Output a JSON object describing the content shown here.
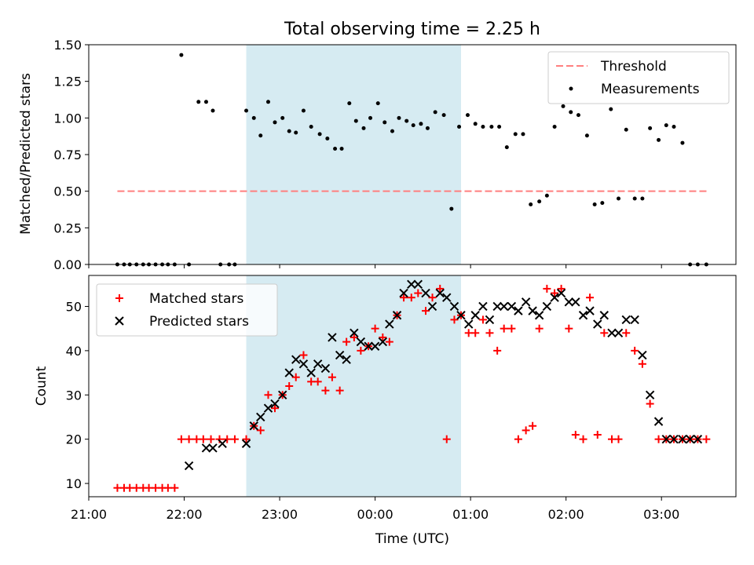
{
  "title": "Total observing time = 2.25 h",
  "x_axis": {
    "label": "Time (UTC)",
    "ticks": [
      {
        "t": 21.0,
        "label": "21:00"
      },
      {
        "t": 22.0,
        "label": "22:00"
      },
      {
        "t": 23.0,
        "label": "23:00"
      },
      {
        "t": 24.0,
        "label": "00:00"
      },
      {
        "t": 25.0,
        "label": "01:00"
      },
      {
        "t": 26.0,
        "label": "02:00"
      },
      {
        "t": 27.0,
        "label": "03:00"
      }
    ],
    "range": [
      21.0,
      27.78
    ]
  },
  "shaded_interval": {
    "start": 22.65,
    "end": 24.9,
    "color": "#add8e6"
  },
  "chart_data": [
    {
      "type": "scatter",
      "panel": "top",
      "ylabel": "Matched/Predicted stars",
      "ylim": [
        0,
        1.5
      ],
      "yticks": [
        {
          "v": 0.0,
          "label": "0.00"
        },
        {
          "v": 0.25,
          "label": "0.25"
        },
        {
          "v": 0.5,
          "label": "0.50"
        },
        {
          "v": 0.75,
          "label": "0.75"
        },
        {
          "v": 1.0,
          "label": "1.00"
        },
        {
          "v": 1.25,
          "label": "1.25"
        },
        {
          "v": 1.5,
          "label": "1.50"
        }
      ],
      "legend": {
        "placement": "top-right",
        "entries": [
          "Threshold",
          "Measurements"
        ]
      },
      "threshold": {
        "name": "Threshold",
        "value": 0.5,
        "x_range": [
          21.3,
          27.48
        ],
        "color": "#ff7f7f"
      },
      "series": [
        {
          "name": "Measurements",
          "color": "#000000",
          "x": [
            21.3,
            21.37,
            21.43,
            21.5,
            21.57,
            21.63,
            21.7,
            21.77,
            21.83,
            21.9,
            21.97,
            22.05,
            22.15,
            22.23,
            22.3,
            22.38,
            22.47,
            22.53,
            22.65,
            22.73,
            22.8,
            22.88,
            22.95,
            23.03,
            23.1,
            23.17,
            23.25,
            23.33,
            23.42,
            23.5,
            23.58,
            23.65,
            23.73,
            23.8,
            23.88,
            23.95,
            24.03,
            24.1,
            24.18,
            24.25,
            24.33,
            24.4,
            24.48,
            24.55,
            24.63,
            24.72,
            24.8,
            24.88,
            24.97,
            25.05,
            25.13,
            25.22,
            25.3,
            25.38,
            25.47,
            25.55,
            25.63,
            25.72,
            25.8,
            25.88,
            25.97,
            26.05,
            26.13,
            26.22,
            26.3,
            26.38,
            26.47,
            26.55,
            26.63,
            26.72,
            26.8,
            26.88,
            26.97,
            27.05,
            27.13,
            27.22,
            27.3,
            27.38,
            27.47
          ],
          "values": [
            0.0,
            0.0,
            0.0,
            0.0,
            0.0,
            0.0,
            0.0,
            0.0,
            0.0,
            0.0,
            1.43,
            0.0,
            1.11,
            1.11,
            1.05,
            0.0,
            0.0,
            0.0,
            1.05,
            1.0,
            0.88,
            1.11,
            0.97,
            1.0,
            0.91,
            0.9,
            1.05,
            0.94,
            0.89,
            0.86,
            0.79,
            0.79,
            1.1,
            0.98,
            0.93,
            1.0,
            1.1,
            0.97,
            0.91,
            1.0,
            0.98,
            0.95,
            0.96,
            0.93,
            1.04,
            1.02,
            0.38,
            0.94,
            1.02,
            0.96,
            0.94,
            0.94,
            0.94,
            0.8,
            0.89,
            0.89,
            0.41,
            0.43,
            0.47,
            0.94,
            1.08,
            1.04,
            1.02,
            0.88,
            0.41,
            0.42,
            1.06,
            0.45,
            0.92,
            0.45,
            0.45,
            0.93,
            0.85,
            0.95,
            0.94,
            0.83,
            0.0,
            0.0,
            0.0
          ]
        }
      ]
    },
    {
      "type": "scatter",
      "panel": "bottom",
      "ylabel": "Count",
      "ylim": [
        7,
        57
      ],
      "yticks": [
        {
          "v": 10,
          "label": "10"
        },
        {
          "v": 20,
          "label": "20"
        },
        {
          "v": 30,
          "label": "30"
        },
        {
          "v": 40,
          "label": "40"
        },
        {
          "v": 50,
          "label": "50"
        }
      ],
      "legend": {
        "placement": "top-left",
        "entries": [
          "Matched stars",
          "Predicted stars"
        ]
      },
      "series": [
        {
          "name": "Matched stars",
          "marker": "+",
          "color": "#ff0000",
          "x": [
            21.3,
            21.37,
            21.43,
            21.5,
            21.57,
            21.63,
            21.7,
            21.77,
            21.83,
            21.9,
            21.97,
            22.05,
            22.13,
            22.2,
            22.28,
            22.37,
            22.45,
            22.53,
            22.65,
            22.73,
            22.8,
            22.88,
            22.95,
            23.03,
            23.1,
            23.17,
            23.25,
            23.33,
            23.4,
            23.48,
            23.55,
            23.63,
            23.7,
            23.78,
            23.85,
            23.93,
            24.0,
            24.08,
            24.15,
            24.23,
            24.3,
            24.38,
            24.45,
            24.53,
            24.6,
            24.68,
            24.75,
            24.83,
            24.9,
            24.98,
            25.05,
            25.13,
            25.2,
            25.28,
            25.35,
            25.43,
            25.5,
            25.58,
            25.65,
            25.72,
            25.8,
            25.88,
            25.95,
            26.03,
            26.1,
            26.18,
            26.25,
            26.33,
            26.4,
            26.48,
            26.55,
            26.63,
            26.72,
            26.8,
            26.88,
            26.97,
            27.05,
            27.13,
            27.22,
            27.3,
            27.38,
            27.47
          ],
          "values": [
            9,
            9,
            9,
            9,
            9,
            9,
            9,
            9,
            9,
            9,
            20,
            20,
            20,
            20,
            20,
            20,
            20,
            20,
            20,
            23,
            22,
            30,
            27,
            30,
            32,
            34,
            39,
            33,
            33,
            31,
            34,
            31,
            42,
            43,
            40,
            41,
            45,
            43,
            42,
            48,
            52,
            52,
            53,
            49,
            52,
            54,
            20,
            47,
            48,
            44,
            44,
            47,
            44,
            40,
            45,
            45,
            20,
            22,
            23,
            45,
            54,
            53,
            54,
            45,
            21,
            20,
            52,
            21,
            44,
            20,
            20,
            44,
            40,
            37,
            28,
            20,
            20,
            20,
            20,
            20,
            20,
            20
          ]
        },
        {
          "name": "Predicted stars",
          "marker": "x",
          "color": "#000000",
          "x": [
            22.05,
            22.23,
            22.3,
            22.4,
            22.65,
            22.73,
            22.8,
            22.88,
            22.95,
            23.03,
            23.1,
            23.17,
            23.25,
            23.33,
            23.4,
            23.48,
            23.55,
            23.63,
            23.7,
            23.78,
            23.85,
            23.93,
            24.0,
            24.08,
            24.15,
            24.23,
            24.3,
            24.38,
            24.45,
            24.53,
            24.6,
            24.68,
            24.75,
            24.83,
            24.9,
            24.98,
            25.05,
            25.13,
            25.2,
            25.28,
            25.35,
            25.43,
            25.5,
            25.58,
            25.65,
            25.72,
            25.8,
            25.88,
            25.95,
            26.03,
            26.1,
            26.18,
            26.25,
            26.33,
            26.4,
            26.48,
            26.55,
            26.63,
            26.72,
            26.8,
            26.88,
            26.97,
            27.05,
            27.13,
            27.22,
            27.3,
            27.38
          ],
          "values": [
            14,
            18,
            18,
            19,
            19,
            23,
            25,
            27,
            28,
            30,
            35,
            38,
            37,
            35,
            37,
            36,
            43,
            39,
            38,
            44,
            42,
            41,
            41,
            42,
            46,
            48,
            53,
            55,
            55,
            53,
            50,
            53,
            52,
            50,
            48,
            46,
            48,
            50,
            47,
            50,
            50,
            50,
            49,
            51,
            49,
            48,
            50,
            52,
            53,
            51,
            51,
            48,
            49,
            46,
            48,
            44,
            44,
            47,
            47,
            39,
            30,
            24,
            20,
            20,
            20,
            20,
            20
          ]
        }
      ]
    }
  ]
}
